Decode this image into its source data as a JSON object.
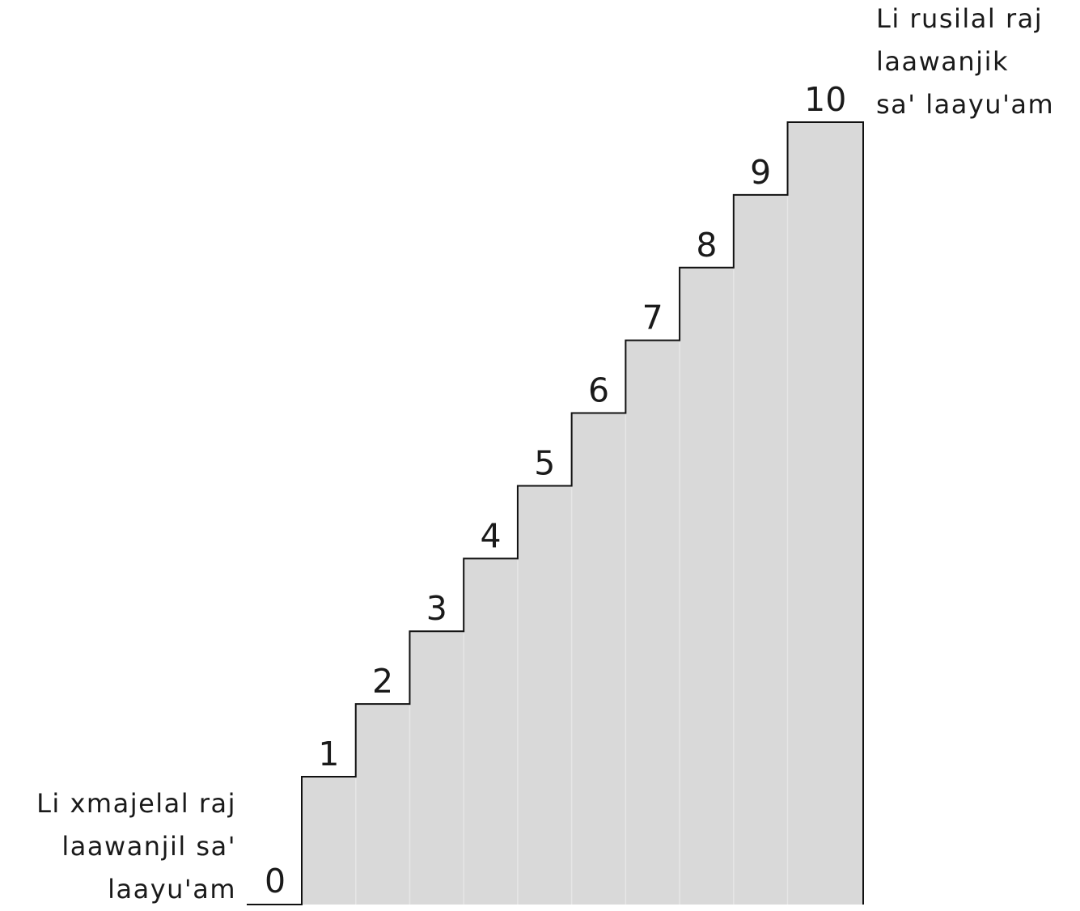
{
  "steps": [
    "0",
    "1",
    "2",
    "3",
    "4",
    "5",
    "6",
    "7",
    "8",
    "9",
    "10"
  ],
  "labels": {
    "bottom": [
      "Li xmajelal raj",
      "laawanjil sa'",
      "laayu'am"
    ],
    "top": [
      "Li rusilal raj",
      "laawanjik",
      "sa' laayu'am"
    ]
  },
  "colors": {
    "fill": "#d9d9d9",
    "stroke": "#111111",
    "seam": "#e6e6e6"
  }
}
